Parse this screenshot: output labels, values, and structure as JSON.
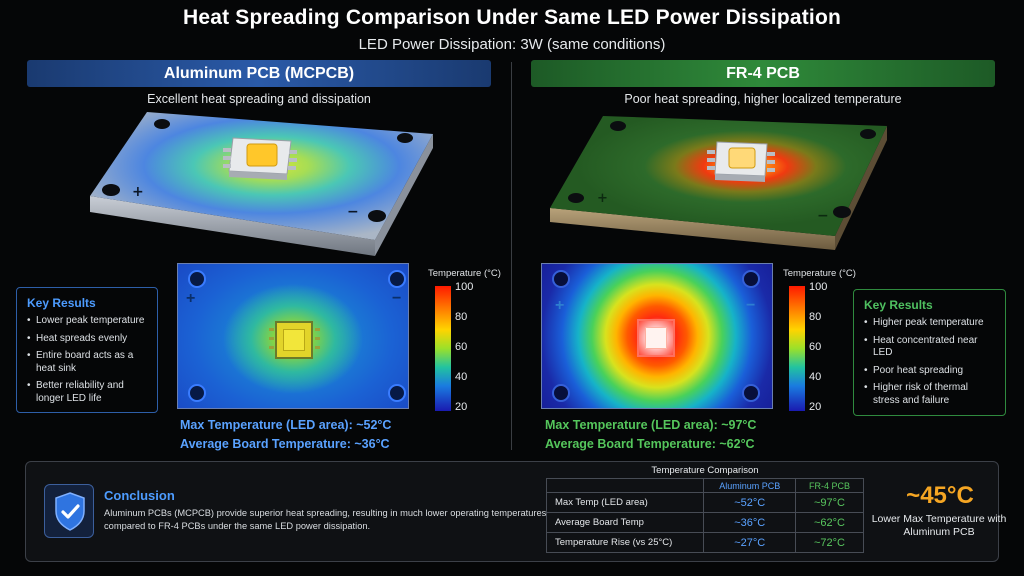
{
  "title": "Heat Spreading Comparison Under Same LED Power Dissipation",
  "subtitle": "LED Power Dissipation: 3W (same conditions)",
  "aluminum": {
    "banner": "Aluminum PCB (MCPCB)",
    "caption": "Excellent heat spreading and dissipation",
    "plus": "+",
    "minus": "−",
    "max_temp": "Max Temperature (LED area): ~52°C",
    "avg_temp": "Average Board Temperature: ~36°C",
    "key_title": "Key Results",
    "key_items": [
      "Lower peak temperature",
      "Heat spreads evenly",
      "Entire board acts as a heat sink",
      "Better reliability and longer LED life"
    ],
    "accent": "#4d9cff"
  },
  "fr4": {
    "banner": "FR-4 PCB",
    "caption": "Poor heat spreading, higher localized temperature",
    "plus": "+",
    "minus": "−",
    "max_temp": "Max Temperature (LED area): ~97°C",
    "avg_temp": "Average Board Temperature: ~62°C",
    "key_title": "Key Results",
    "key_items": [
      "Higher peak temperature",
      "Heat concentrated near LED",
      "Poor heat spreading",
      "Higher risk of thermal stress and failure"
    ],
    "accent": "#4fc060"
  },
  "scale": {
    "title": "Temperature (°C)",
    "ticks": [
      "100",
      "80",
      "60",
      "40",
      "20"
    ]
  },
  "conclusion": {
    "title": "Conclusion",
    "text": "Aluminum PCBs (MCPCB) provide superior heat spreading, resulting in much lower operating temperatures compared to FR-4 PCBs under the same LED power dissipation.",
    "icon": "shield-check-icon"
  },
  "comparison": {
    "title": "Temperature Comparison",
    "headers": [
      "",
      "Aluminum PCB",
      "FR-4 PCB"
    ],
    "rows": [
      {
        "label": "Max Temp (LED area)",
        "alu": "~52°C",
        "fr4": "~97°C"
      },
      {
        "label": "Average Board Temp",
        "alu": "~36°C",
        "fr4": "~62°C"
      },
      {
        "label": "Temperature Rise (vs 25°C)",
        "alu": "~27°C",
        "fr4": "~72°C"
      }
    ]
  },
  "delta": {
    "value": "~45°C",
    "caption": "Lower Max Temperature with Aluminum PCB"
  }
}
